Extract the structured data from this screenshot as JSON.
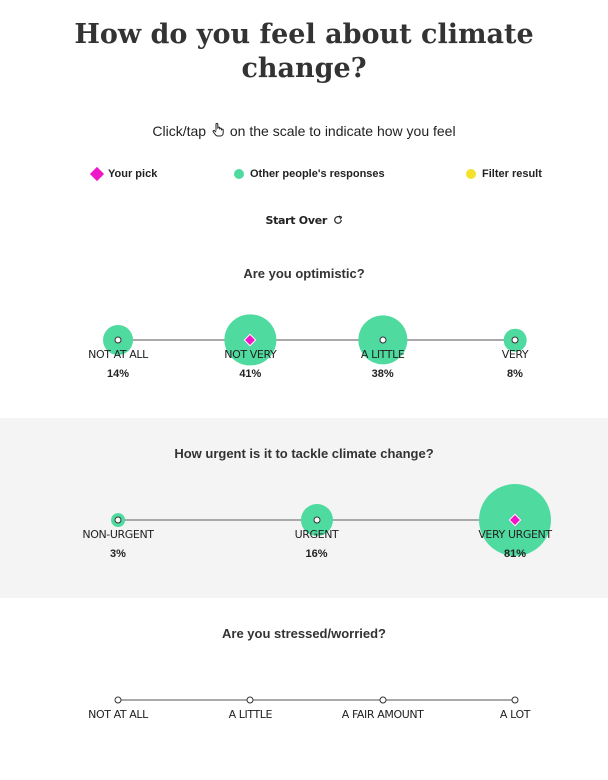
{
  "header": {
    "title_line1": "How do you feel about climate",
    "title_line2": "change?"
  },
  "instruction": {
    "before": "Click/tap",
    "after": "on the scale to indicate how you feel",
    "icon": "pointer-hand-icon"
  },
  "legend": {
    "pick": "Your pick",
    "others": "Other people's responses",
    "filter": "Filter result"
  },
  "colors": {
    "pick": "#ee16c8",
    "others": "#4fdb9f",
    "filter": "#f4e12c",
    "section_bg": "#f4f4f4"
  },
  "start_over": {
    "label": "Start Over",
    "icon": "refresh-icon"
  },
  "questions": [
    {
      "title": "Are you optimistic?",
      "options": [
        {
          "label": "NOT AT ALL",
          "pct": "14%",
          "share": 14,
          "picked": false
        },
        {
          "label": "NOT VERY",
          "pct": "41%",
          "share": 41,
          "picked": true
        },
        {
          "label": "A LITTLE",
          "pct": "38%",
          "share": 38,
          "picked": false
        },
        {
          "label": "VERY",
          "pct": "8%",
          "share": 8,
          "picked": false
        }
      ]
    },
    {
      "title": "How urgent is it to tackle climate change?",
      "options": [
        {
          "label": "NON-URGENT",
          "pct": "3%",
          "share": 3,
          "picked": false
        },
        {
          "label": "URGENT",
          "pct": "16%",
          "share": 16,
          "picked": false
        },
        {
          "label": "VERY URGENT",
          "pct": "81%",
          "share": 81,
          "picked": true
        }
      ]
    },
    {
      "title": "Are you stressed/worried?",
      "options": [
        {
          "label": "NOT AT ALL"
        },
        {
          "label": "A LITTLE"
        },
        {
          "label": "A FAIR AMOUNT"
        },
        {
          "label": "A LOT"
        }
      ]
    }
  ]
}
